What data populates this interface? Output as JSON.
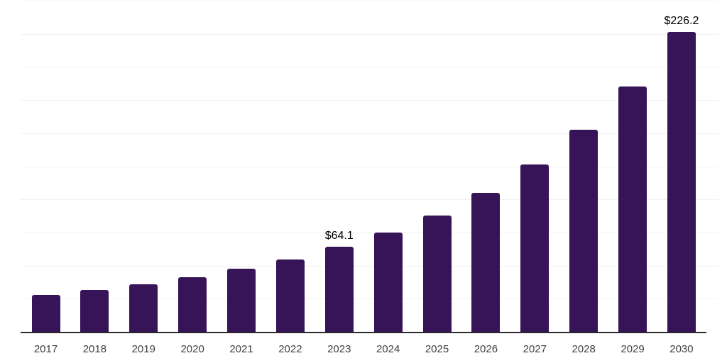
{
  "chart_data": {
    "type": "bar",
    "title": "",
    "xlabel": "",
    "ylabel": "",
    "categories": [
      "2017",
      "2018",
      "2019",
      "2020",
      "2021",
      "2022",
      "2023",
      "2024",
      "2025",
      "2026",
      "2027",
      "2028",
      "2029",
      "2030"
    ],
    "values": [
      27.6,
      31.5,
      35.9,
      41.1,
      47.4,
      54.8,
      64.1,
      74.9,
      88.0,
      104.9,
      126.5,
      152.4,
      185.3,
      226.2
    ],
    "bar_labels": {
      "2023": "$64.1",
      "2030": "$226.2"
    },
    "ylim": [
      0,
      250
    ],
    "gridline_step": 25,
    "grid": true,
    "legend": false,
    "colors": {
      "bar": "#371357",
      "gridline": "#f1f1f3",
      "axis": "#2a2a2a",
      "tick_label": "#404040",
      "value_label": "#000000",
      "background": "#ffffff"
    }
  }
}
